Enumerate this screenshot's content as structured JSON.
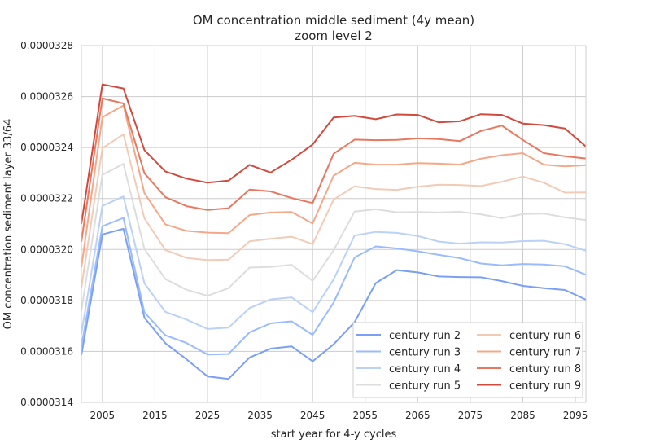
{
  "chart_data": {
    "type": "line",
    "title": "OM concentration middle sediment (4y mean)",
    "subtitle": "zoom level 2",
    "xlabel": "start year for 4-y cycles",
    "ylabel": "OM concentration sediment layer 33/64",
    "xlim": [
      2001,
      2097
    ],
    "ylim": [
      3.14e-05,
      3.28e-05
    ],
    "x_ticks": [
      2005,
      2015,
      2025,
      2035,
      2045,
      2055,
      2065,
      2075,
      2085,
      2095
    ],
    "y_ticks": [
      3.14e-05,
      3.16e-05,
      3.18e-05,
      3.2e-05,
      3.22e-05,
      3.24e-05,
      3.26e-05,
      3.28e-05
    ],
    "y_tick_labels": [
      "0.0000314",
      "0.0000316",
      "0.0000318",
      "0.0000320",
      "0.0000322",
      "0.0000324",
      "0.0000326",
      "0.0000328"
    ],
    "grid": true,
    "legend_position": "lower-right",
    "legend_columns": 2,
    "x": [
      2001,
      2005,
      2009,
      2013,
      2017,
      2021,
      2025,
      2029,
      2033,
      2037,
      2041,
      2045,
      2049,
      2053,
      2057,
      2061,
      2065,
      2069,
      2073,
      2077,
      2081,
      2085,
      2089,
      2093,
      2097
    ],
    "series": [
      {
        "name": "century run 2",
        "color": "#7b9ff2",
        "values": [
          3.1585e-05,
          3.2059e-05,
          3.2081e-05,
          3.1732e-05,
          3.1632e-05,
          3.1569e-05,
          3.1502e-05,
          3.1492e-05,
          3.1576e-05,
          3.1611e-05,
          3.162e-05,
          3.1561e-05,
          3.1628e-05,
          3.1715e-05,
          3.1868e-05,
          3.1919e-05,
          3.191e-05,
          3.1894e-05,
          3.1892e-05,
          3.1891e-05,
          3.1876e-05,
          3.1857e-05,
          3.1848e-05,
          3.1841e-05,
          3.1803e-05
        ]
      },
      {
        "name": "century run 3",
        "color": "#9abbff",
        "values": [
          3.1618e-05,
          3.2091e-05,
          3.2124e-05,
          3.1753e-05,
          3.1663e-05,
          3.1633e-05,
          3.1588e-05,
          3.159e-05,
          3.1675e-05,
          3.171e-05,
          3.1718e-05,
          3.1665e-05,
          3.1792e-05,
          3.1969e-05,
          3.2012e-05,
          3.2004e-05,
          3.1993e-05,
          3.1979e-05,
          3.1966e-05,
          3.1945e-05,
          3.1938e-05,
          3.1943e-05,
          3.1941e-05,
          3.1934e-05,
          3.1901e-05
        ]
      },
      {
        "name": "century run 4",
        "color": "#bbd1f8",
        "values": [
          3.167e-05,
          3.2171e-05,
          3.2208e-05,
          3.1867e-05,
          3.1755e-05,
          3.1725e-05,
          3.1688e-05,
          3.1693e-05,
          3.177e-05,
          3.1804e-05,
          3.1812e-05,
          3.1754e-05,
          3.1883e-05,
          3.2055e-05,
          3.2069e-05,
          3.2065e-05,
          3.2053e-05,
          3.2031e-05,
          3.2023e-05,
          3.2028e-05,
          3.2027e-05,
          3.2033e-05,
          3.2034e-05,
          3.2021e-05,
          3.1995e-05
        ]
      },
      {
        "name": "century run 5",
        "color": "#dcdddd",
        "values": [
          3.176e-05,
          3.2293e-05,
          3.2336e-05,
          3.2002e-05,
          3.1884e-05,
          3.1842e-05,
          3.1818e-05,
          3.1848e-05,
          3.1929e-05,
          3.1932e-05,
          3.194e-05,
          3.1877e-05,
          3.1997e-05,
          3.2149e-05,
          3.2158e-05,
          3.2146e-05,
          3.2147e-05,
          3.2145e-05,
          3.2148e-05,
          3.2138e-05,
          3.2123e-05,
          3.2139e-05,
          3.2141e-05,
          3.2126e-05,
          3.2115e-05
        ]
      },
      {
        "name": "century run 6",
        "color": "#f2cbb7",
        "values": [
          3.185e-05,
          3.2398e-05,
          3.2452e-05,
          3.2122e-05,
          3.1998e-05,
          3.1967e-05,
          3.1958e-05,
          3.196e-05,
          3.2032e-05,
          3.2042e-05,
          3.205e-05,
          3.2021e-05,
          3.2196e-05,
          3.2248e-05,
          3.2237e-05,
          3.2234e-05,
          3.2246e-05,
          3.2254e-05,
          3.2253e-05,
          3.2249e-05,
          3.2266e-05,
          3.2286e-05,
          3.2262e-05,
          3.2223e-05,
          3.2224e-05
        ]
      },
      {
        "name": "century run 7",
        "color": "#f4a889",
        "values": [
          3.193e-05,
          3.2519e-05,
          3.2565e-05,
          3.2221e-05,
          3.2098e-05,
          3.2073e-05,
          3.2066e-05,
          3.2064e-05,
          3.2135e-05,
          3.2145e-05,
          3.2147e-05,
          3.2102e-05,
          3.229e-05,
          3.234e-05,
          3.2333e-05,
          3.2333e-05,
          3.2339e-05,
          3.2337e-05,
          3.2333e-05,
          3.2356e-05,
          3.237e-05,
          3.2378e-05,
          3.2333e-05,
          3.2326e-05,
          3.2331e-05
        ]
      },
      {
        "name": "century run 8",
        "color": "#e8785f",
        "values": [
          3.203e-05,
          3.2593e-05,
          3.2573e-05,
          3.2299e-05,
          3.2205e-05,
          3.217e-05,
          3.2155e-05,
          3.2162e-05,
          3.2235e-05,
          3.2228e-05,
          3.2202e-05,
          3.2182e-05,
          3.2376e-05,
          3.2431e-05,
          3.2429e-05,
          3.243e-05,
          3.2436e-05,
          3.2433e-05,
          3.2425e-05,
          3.2465e-05,
          3.2486e-05,
          3.243e-05,
          3.2378e-05,
          3.2366e-05,
          3.2357e-05
        ]
      },
      {
        "name": "century run 9",
        "color": "#d04a3e",
        "values": [
          3.21e-05,
          3.2648e-05,
          3.2632e-05,
          3.239e-05,
          3.2306e-05,
          3.2278e-05,
          3.2262e-05,
          3.227e-05,
          3.2332e-05,
          3.2302e-05,
          3.2352e-05,
          3.2412e-05,
          3.2518e-05,
          3.2524e-05,
          3.2511e-05,
          3.253e-05,
          3.2528e-05,
          3.2499e-05,
          3.2503e-05,
          3.2531e-05,
          3.2528e-05,
          3.2494e-05,
          3.2488e-05,
          3.2475e-05,
          3.2404e-05
        ]
      }
    ]
  }
}
